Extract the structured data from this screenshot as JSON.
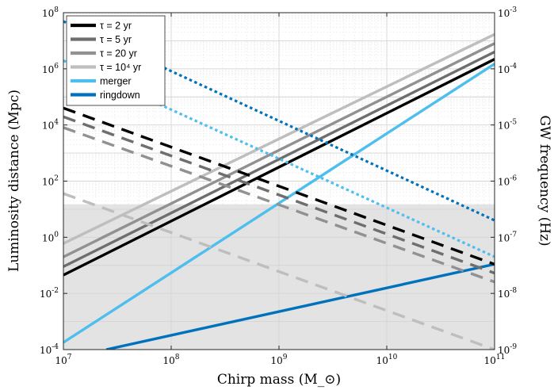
{
  "chart_data": {
    "type": "line",
    "xlabel": "Chirp mass (M_⊙)",
    "ylabel_left": "Luminosity distance (Mpc)",
    "ylabel_right": "GW frequency (Hz)",
    "x_scale": "log",
    "y_left_scale": "log",
    "y_right_scale": "log",
    "xlim": [
      10000000.0,
      100000000000.0
    ],
    "ylim_left": [
      0.0001,
      100000000.0
    ],
    "ylim_right": [
      1e-09,
      0.001
    ],
    "x_ticks": [
      {
        "base": "10",
        "exp": "7"
      },
      {
        "base": "10",
        "exp": "8"
      },
      {
        "base": "10",
        "exp": "9"
      },
      {
        "base": "10",
        "exp": "10"
      },
      {
        "base": "10",
        "exp": "11"
      }
    ],
    "y_left_ticks": [
      {
        "base": "10",
        "exp": "-4"
      },
      {
        "base": "10",
        "exp": "-2"
      },
      {
        "base": "10",
        "exp": "0"
      },
      {
        "base": "10",
        "exp": "2"
      },
      {
        "base": "10",
        "exp": "4"
      },
      {
        "base": "10",
        "exp": "6"
      },
      {
        "base": "10",
        "exp": "8"
      }
    ],
    "y_right_ticks": [
      {
        "base": "10",
        "exp": "-9"
      },
      {
        "base": "10",
        "exp": "-8"
      },
      {
        "base": "10",
        "exp": "-7"
      },
      {
        "base": "10",
        "exp": "-6"
      },
      {
        "base": "10",
        "exp": "-5"
      },
      {
        "base": "10",
        "exp": "-4"
      },
      {
        "base": "10",
        "exp": "-3"
      }
    ],
    "grid": true,
    "shaded_region": {
      "y_left_min": 0.0001,
      "y_left_max": 15,
      "color": "#e3e3e3"
    },
    "legend_position": "top-left",
    "series": [
      {
        "name": "τ = 2 yr",
        "style": "solid",
        "axis": "left",
        "color": "#000000",
        "x": [
          10000000.0,
          100000000000.0
        ],
        "y": [
          0.045,
          2200000.0
        ]
      },
      {
        "name": "τ = 5 yr",
        "style": "solid",
        "axis": "left",
        "color": "#6e6e6e",
        "x": [
          10000000.0,
          100000000000.0
        ],
        "y": [
          0.09,
          4000000.0
        ]
      },
      {
        "name": "τ = 20 yr",
        "style": "solid",
        "axis": "left",
        "color": "#919191",
        "x": [
          10000000.0,
          100000000000.0
        ],
        "y": [
          0.2,
          8000000.0
        ]
      },
      {
        "name": "τ = 10⁴ yr",
        "style": "solid",
        "axis": "left",
        "color": "#bebebe",
        "x": [
          10000000.0,
          100000000000.0
        ],
        "y": [
          0.6,
          17000000.0
        ]
      },
      {
        "name": "merger",
        "style": "solid",
        "axis": "left",
        "color": "#4dbeee",
        "x": [
          10000000.0,
          100000000000.0
        ],
        "y": [
          0.00018,
          1500000.0
        ]
      },
      {
        "name": "ringdown",
        "style": "solid",
        "axis": "left",
        "color": "#0072bd",
        "x": [
          25000000.0,
          100000000000.0
        ],
        "y": [
          0.0001,
          0.11
        ]
      },
      {
        "name": "",
        "style": "dashed",
        "axis": "right",
        "color": "#000000",
        "x": [
          10000000.0,
          100000000000.0
        ],
        "y": [
          2e-05,
          3.3e-08
        ]
      },
      {
        "name": "",
        "style": "dashed",
        "axis": "right",
        "color": "#6e6e6e",
        "x": [
          10000000.0,
          100000000000.0
        ],
        "y": [
          1.4e-05,
          2.3e-08
        ]
      },
      {
        "name": "",
        "style": "dashed",
        "axis": "right",
        "color": "#919191",
        "x": [
          10000000.0,
          100000000000.0
        ],
        "y": [
          9e-06,
          1.6e-08
        ]
      },
      {
        "name": "",
        "style": "dashed",
        "axis": "right",
        "color": "#bebebe",
        "x": [
          10000000.0,
          100000000000.0
        ],
        "y": [
          6e-07,
          1e-09
        ]
      },
      {
        "name": "",
        "style": "dotted",
        "axis": "right",
        "color": "#4dbeee",
        "x": [
          10000000.0,
          100000000000.0
        ],
        "y": [
          0.00014,
          4.5e-08
        ]
      },
      {
        "name": "",
        "style": "dotted",
        "axis": "right",
        "color": "#0072bd",
        "x": [
          10000000.0,
          100000000000.0
        ],
        "y": [
          0.0007,
          2e-07
        ]
      }
    ]
  }
}
